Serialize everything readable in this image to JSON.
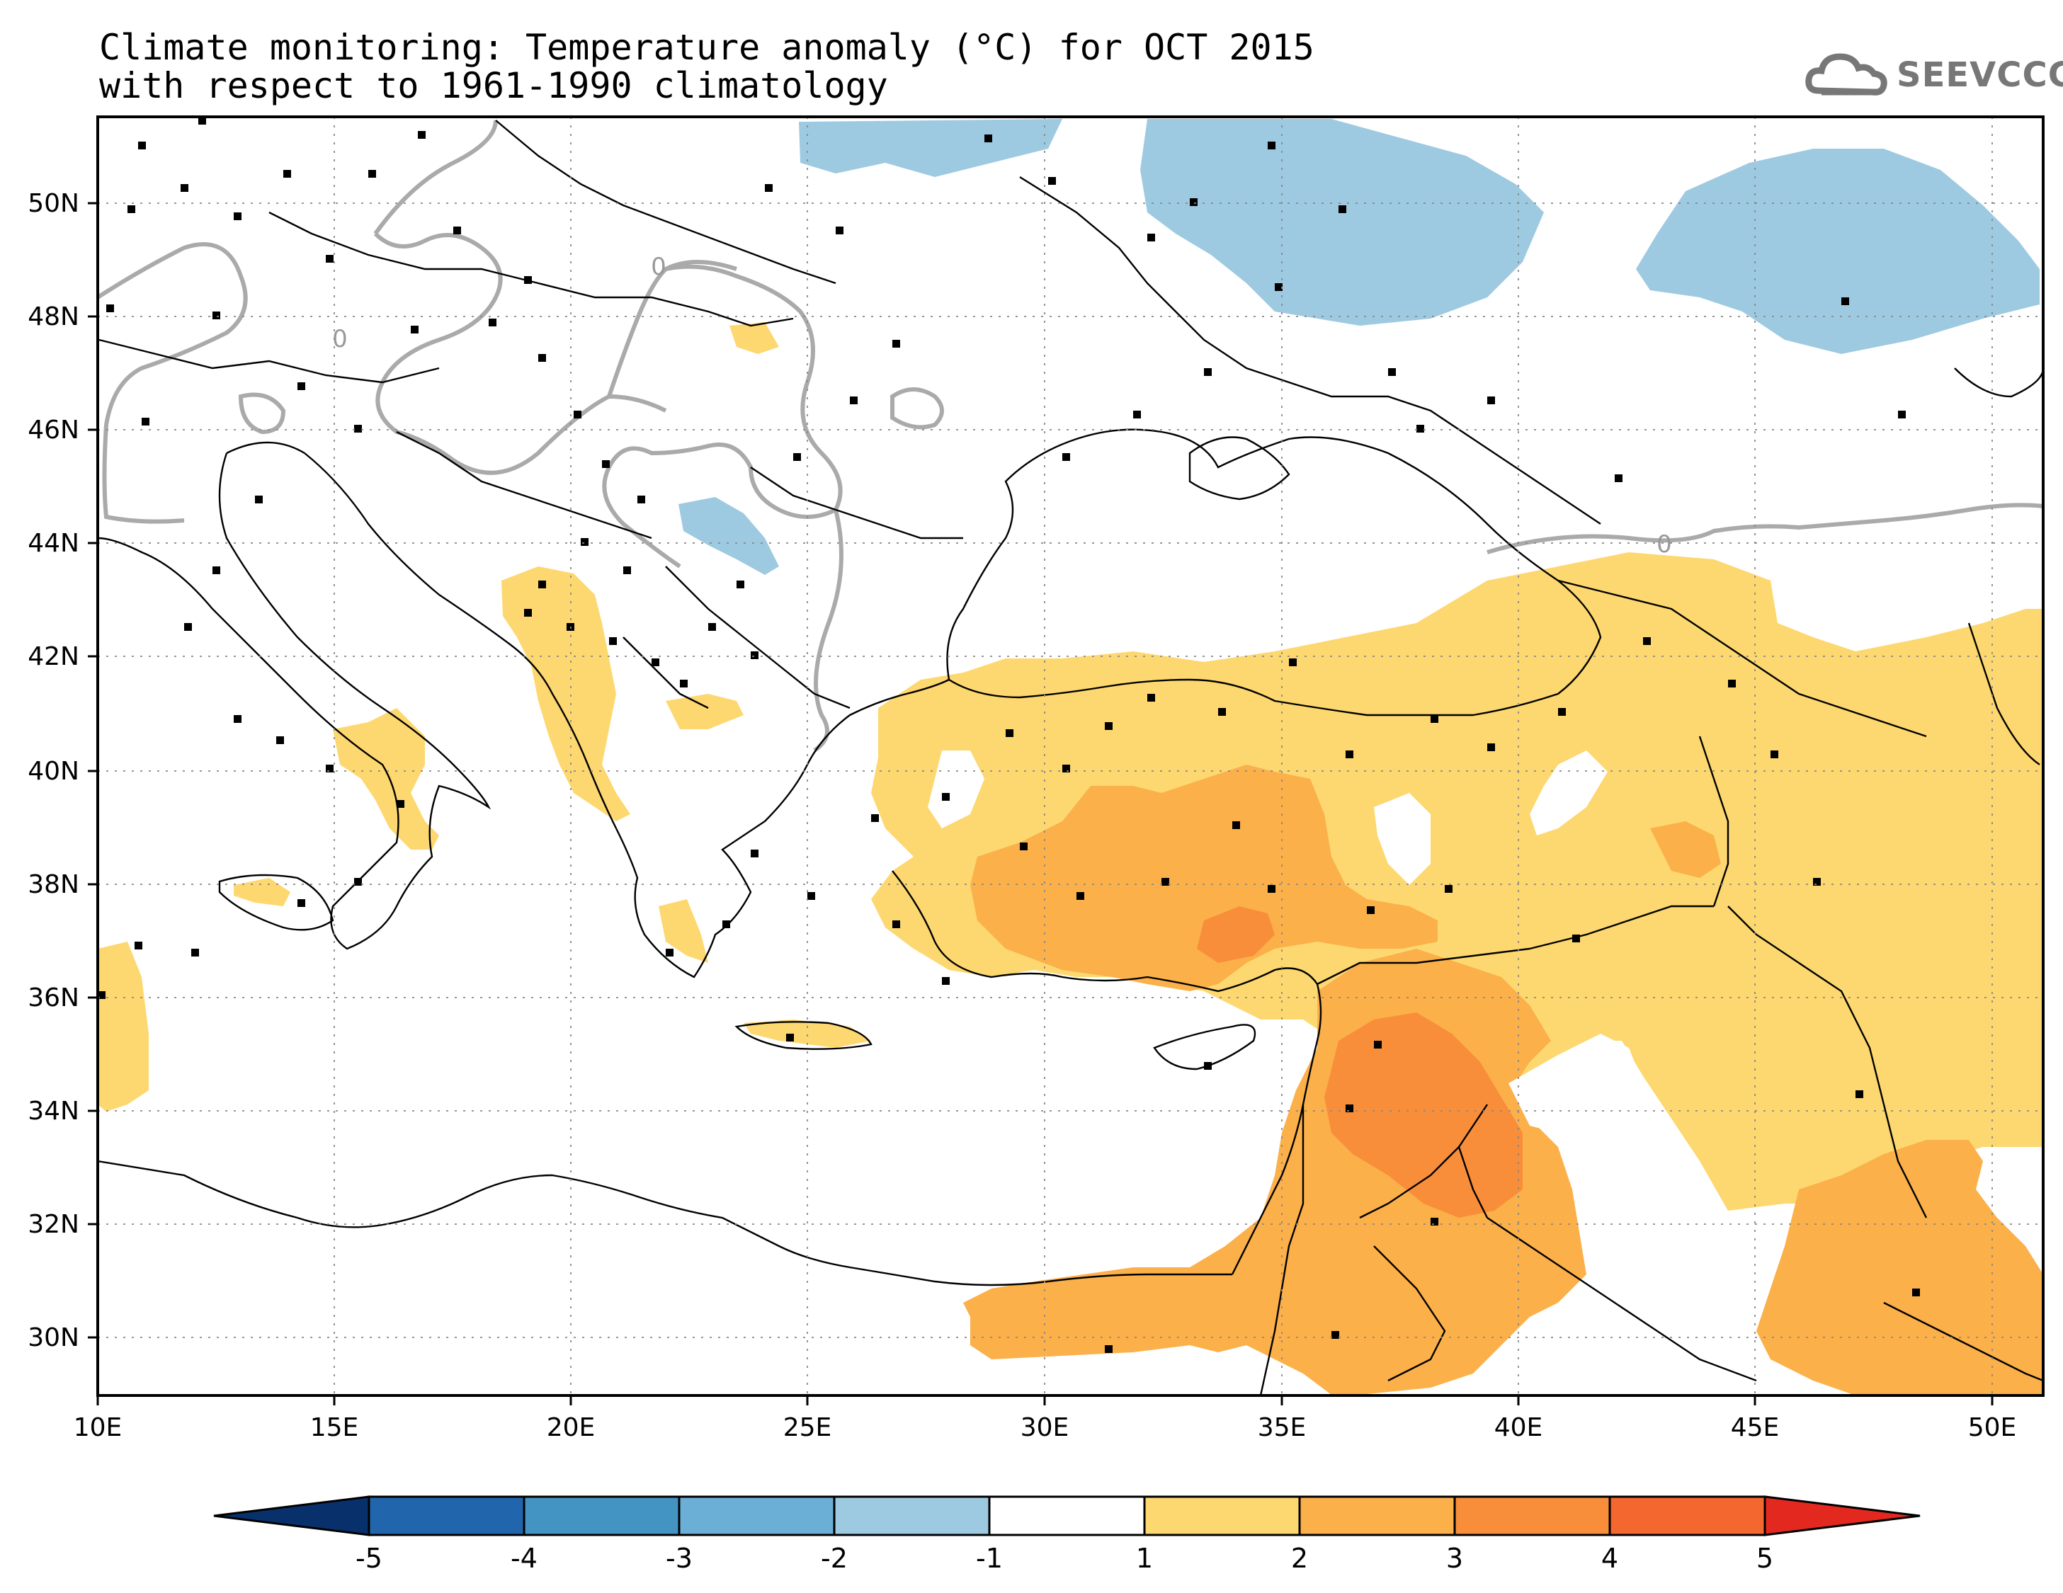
{
  "title": {
    "line1": "Climate monitoring: Temperature anomaly (°C) for OCT 2015",
    "line2": "with respect to 1961-1990 climatology"
  },
  "logo": {
    "text": "SEEVCCC",
    "icon": "cloud-icon",
    "color": "#777777"
  },
  "map": {
    "lon_labels": [
      "10E",
      "15E",
      "20E",
      "25E",
      "30E",
      "35E",
      "40E",
      "45E",
      "50E"
    ],
    "lat_labels": [
      "50N",
      "48N",
      "46N",
      "44N",
      "42N",
      "40N",
      "38N",
      "36N",
      "34N",
      "32N",
      "30N"
    ],
    "contour_label": "0",
    "colors": {
      "cold1": "#9ecae1",
      "warm1": "#fdd870",
      "warm2": "#fbb04a",
      "warm3": "#f98e3a",
      "warm4": "#ef4b2e",
      "contour": "#aaaaaa",
      "border": "#000000"
    }
  },
  "colorbar": {
    "colors": [
      "#08306b",
      "#2166ac",
      "#4393c3",
      "#6baed6",
      "#9ecae1",
      "#ffffff",
      "#fdd870",
      "#fbb04a",
      "#f98e3a",
      "#f4672f",
      "#e3291f"
    ],
    "tick_labels": [
      "-5",
      "-4",
      "-3",
      "-2",
      "-1",
      "1",
      "2",
      "3",
      "4",
      "5"
    ]
  }
}
